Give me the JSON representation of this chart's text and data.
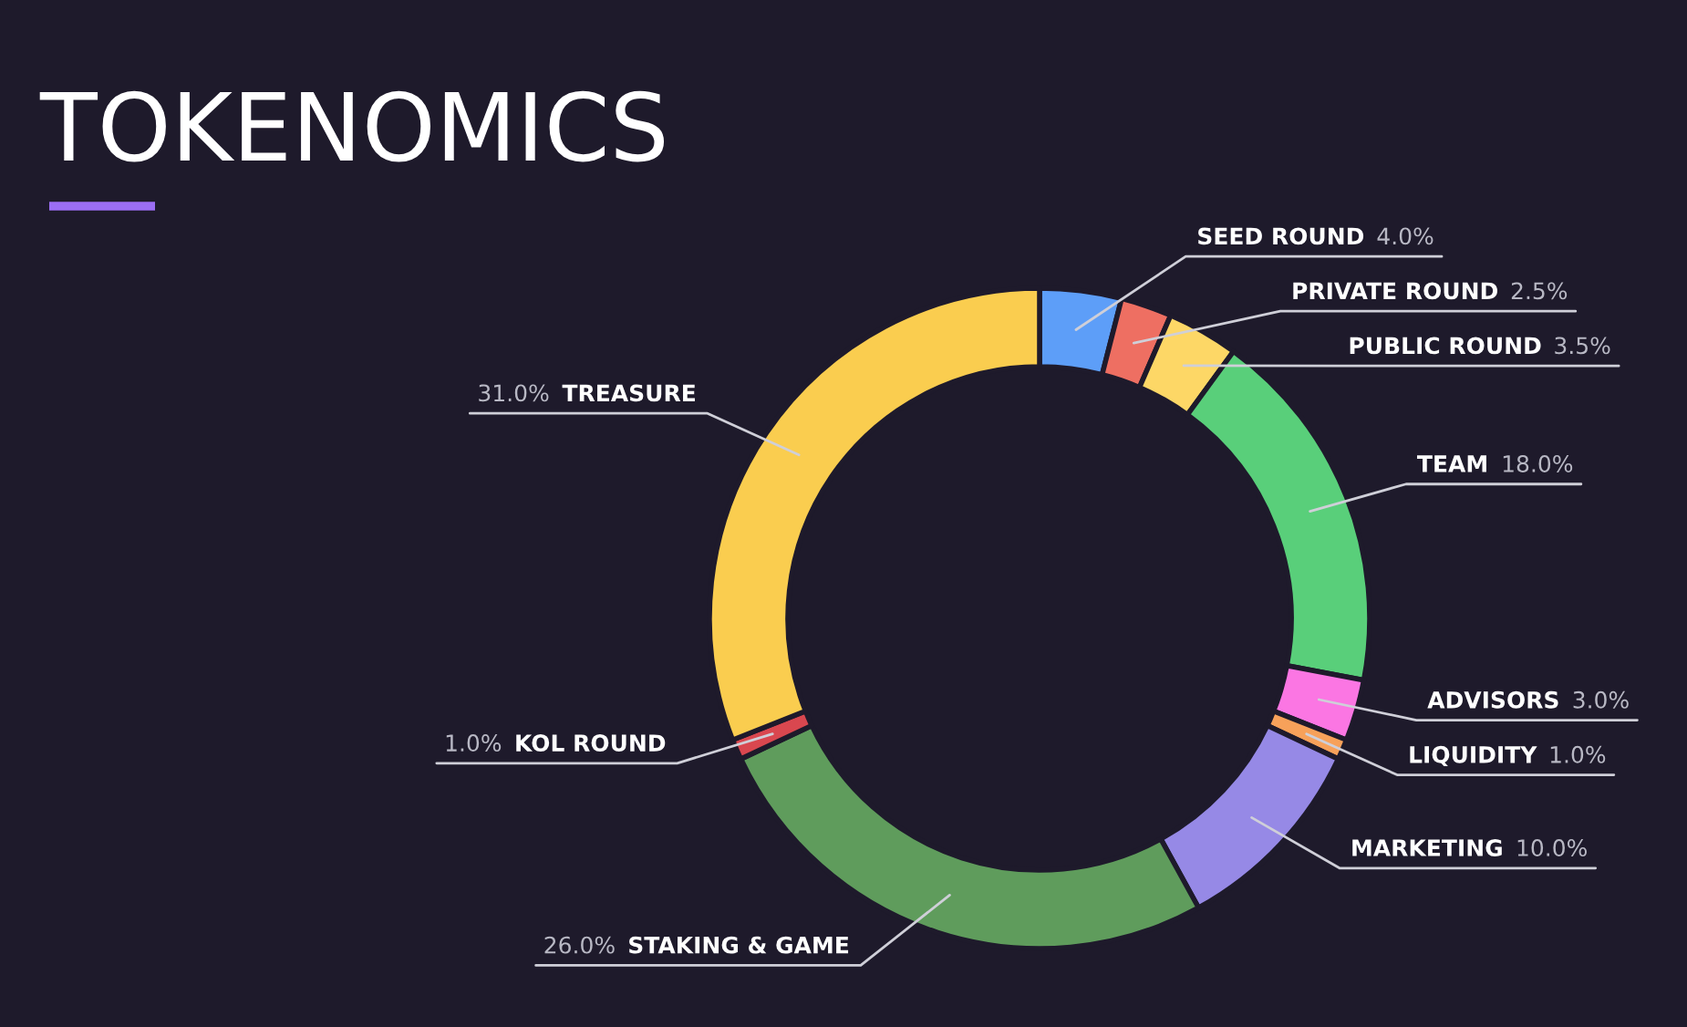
{
  "chart_data": {
    "type": "donut",
    "title": "TOKENOMICS",
    "categories": [
      "SEED ROUND",
      "PRIVATE ROUND",
      "PUBLIC ROUND",
      "TEAM",
      "ADVISORS",
      "LIQUIDITY",
      "MARKETING",
      "STAKING & GAME",
      "KOL ROUND",
      "TREASURE"
    ],
    "values": [
      4.0,
      2.5,
      3.5,
      18.0,
      3.0,
      1.0,
      10.0,
      26.0,
      1.0,
      31.0
    ],
    "colors": [
      "#5d9ef8",
      "#ee6f62",
      "#fdd766",
      "#59cf7a",
      "#fb76e3",
      "#f7a15a",
      "#9689e6",
      "#5f9c5c",
      "#d9474f",
      "#facd4f"
    ],
    "value_labels": [
      "4.0%",
      "2.5%",
      "3.5%",
      "18.0%",
      "3.0%",
      "1.0%",
      "10.0%",
      "26.0%",
      "1.0%",
      "31.0%"
    ]
  }
}
